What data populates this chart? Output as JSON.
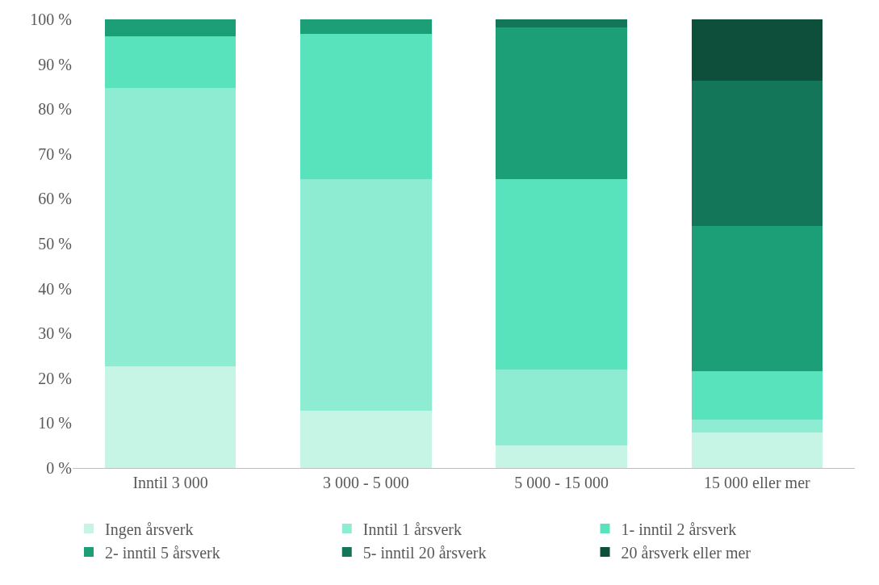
{
  "chart_data": {
    "type": "bar",
    "stacked": true,
    "categories": [
      "Inntil 3 000",
      "3 000 - 5 000",
      "5 000 - 15 000",
      "15 000 eller mer"
    ],
    "series": [
      {
        "name": "Ingen årsverk",
        "color": "#c6f4e5",
        "values": [
          22.7,
          12.8,
          5.0,
          7.9
        ]
      },
      {
        "name": "Inntil 1 årsverk",
        "color": "#8eecd3",
        "values": [
          62.0,
          51.6,
          16.9,
          2.9
        ]
      },
      {
        "name": "1- inntil 2 årsverk",
        "color": "#58e3bc",
        "values": [
          11.5,
          32.4,
          42.5,
          10.8
        ]
      },
      {
        "name": "2- inntil 5 årsverk",
        "color": "#1c9e76",
        "values": [
          3.8,
          3.2,
          33.8,
          32.4
        ]
      },
      {
        "name": "5- inntil 20 årsverk",
        "color": "#137658",
        "values": [
          0,
          0,
          1.8,
          32.3
        ]
      },
      {
        "name": "20 årsverk eller mer",
        "color": "#0d4f3b",
        "values": [
          0,
          0,
          0,
          13.7
        ]
      }
    ],
    "ylim": [
      0,
      100
    ],
    "yticks": [
      {
        "value": 0,
        "label": "0 %"
      },
      {
        "value": 10,
        "label": "10 %"
      },
      {
        "value": 20,
        "label": "20 %"
      },
      {
        "value": 30,
        "label": "30 %"
      },
      {
        "value": 40,
        "label": "40 %"
      },
      {
        "value": 50,
        "label": "50 %"
      },
      {
        "value": 60,
        "label": "60 %"
      },
      {
        "value": 70,
        "label": "70 %"
      },
      {
        "value": 80,
        "label": "80 %"
      },
      {
        "value": 90,
        "label": "90 %"
      },
      {
        "value": 100,
        "label": "100 %"
      }
    ],
    "legend": "bottom"
  }
}
